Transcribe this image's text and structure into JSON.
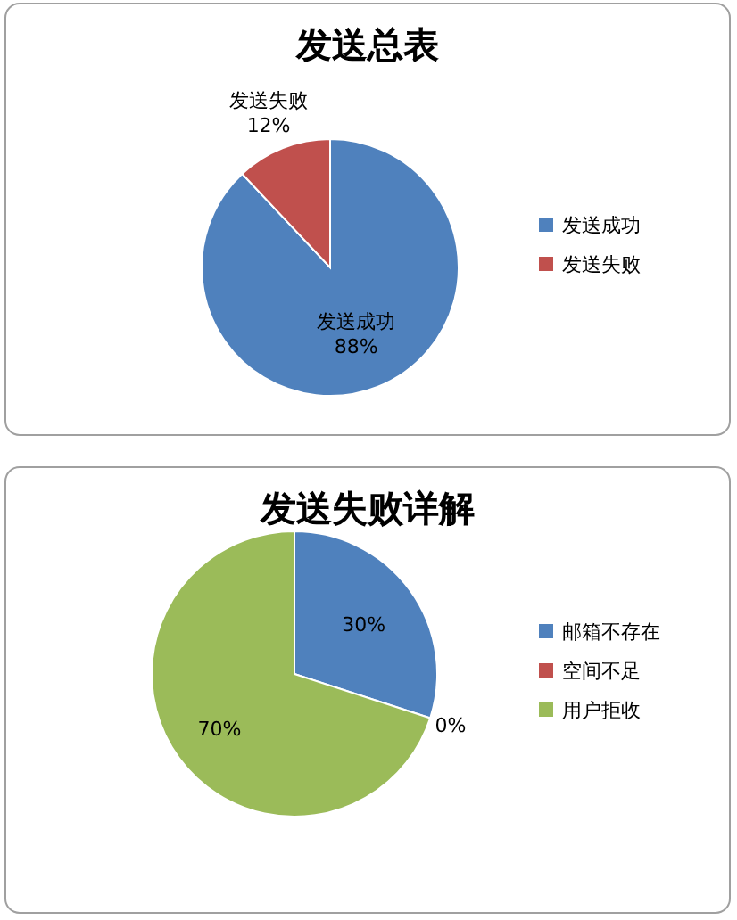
{
  "chart_data": [
    {
      "type": "pie",
      "title": "发送总表",
      "categories": [
        "发送成功",
        "发送失败"
      ],
      "values": [
        88,
        12
      ],
      "colors": [
        "#4f81bd",
        "#c0504d"
      ],
      "value_labels": [
        "发送成功\n88%",
        "发送失败\n12%"
      ],
      "legend": "right"
    },
    {
      "type": "pie",
      "title": "发送失败详解",
      "categories": [
        "邮箱不存在",
        "空间不足",
        "用户拒收"
      ],
      "values": [
        30,
        0,
        70
      ],
      "colors": [
        "#4f81bd",
        "#c0504d",
        "#9bbb59"
      ],
      "value_labels": [
        "30%",
        "0%",
        "70%"
      ],
      "legend": "right"
    }
  ]
}
